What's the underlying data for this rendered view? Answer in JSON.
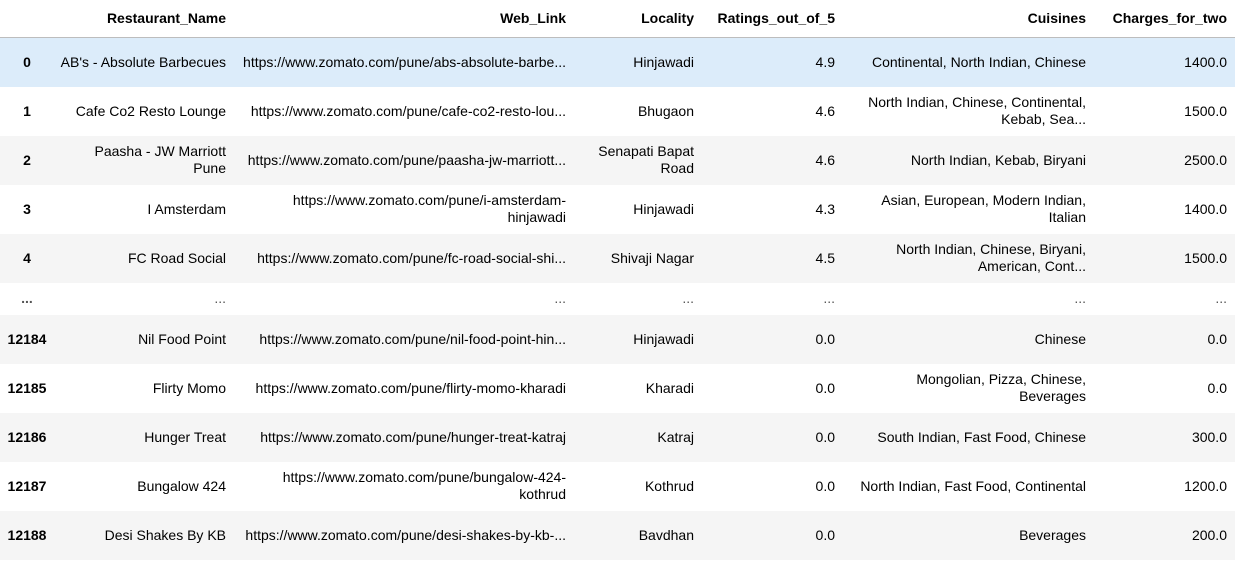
{
  "table": {
    "columns": {
      "index": "",
      "name": "Restaurant_Name",
      "link": "Web_Link",
      "locality": "Locality",
      "ratings": "Ratings_out_of_5",
      "cuisines": "Cuisines",
      "charges": "Charges_for_two"
    },
    "rows": [
      {
        "index": "0",
        "name": "AB's - Absolute Barbecues",
        "link": "https://www.zomato.com/pune/abs-absolute-barbe...",
        "locality": "Hinjawadi",
        "ratings": "4.9",
        "cuisines": "Continental, North Indian, Chinese",
        "charges": "1400.0"
      },
      {
        "index": "1",
        "name": "Cafe Co2 Resto Lounge",
        "link": "https://www.zomato.com/pune/cafe-co2-resto-lou...",
        "locality": "Bhugaon",
        "ratings": "4.6",
        "cuisines": "North Indian, Chinese, Continental, Kebab, Sea...",
        "charges": "1500.0"
      },
      {
        "index": "2",
        "name": "Paasha - JW Marriott Pune",
        "link": "https://www.zomato.com/pune/paasha-jw-marriott...",
        "locality": "Senapati Bapat Road",
        "ratings": "4.6",
        "cuisines": "North Indian, Kebab, Biryani",
        "charges": "2500.0"
      },
      {
        "index": "3",
        "name": "I Amsterdam",
        "link": "https://www.zomato.com/pune/i-amsterdam-hinjawadi",
        "locality": "Hinjawadi",
        "ratings": "4.3",
        "cuisines": "Asian, European, Modern Indian, Italian",
        "charges": "1400.0"
      },
      {
        "index": "4",
        "name": "FC Road Social",
        "link": "https://www.zomato.com/pune/fc-road-social-shi...",
        "locality": "Shivaji Nagar",
        "ratings": "4.5",
        "cuisines": "North Indian, Chinese, Biryani, American, Cont...",
        "charges": "1500.0"
      },
      {
        "index": "...",
        "name": "...",
        "link": "...",
        "locality": "...",
        "ratings": "...",
        "cuisines": "...",
        "charges": "..."
      },
      {
        "index": "12184",
        "name": "Nil Food Point",
        "link": "https://www.zomato.com/pune/nil-food-point-hin...",
        "locality": "Hinjawadi",
        "ratings": "0.0",
        "cuisines": "Chinese",
        "charges": "0.0"
      },
      {
        "index": "12185",
        "name": "Flirty Momo",
        "link": "https://www.zomato.com/pune/flirty-momo-kharadi",
        "locality": "Kharadi",
        "ratings": "0.0",
        "cuisines": "Mongolian, Pizza, Chinese, Beverages",
        "charges": "0.0"
      },
      {
        "index": "12186",
        "name": "Hunger Treat",
        "link": "https://www.zomato.com/pune/hunger-treat-katraj",
        "locality": "Katraj",
        "ratings": "0.0",
        "cuisines": "South Indian, Fast Food, Chinese",
        "charges": "300.0"
      },
      {
        "index": "12187",
        "name": "Bungalow 424",
        "link": "https://www.zomato.com/pune/bungalow-424-kothrud",
        "locality": "Kothrud",
        "ratings": "0.0",
        "cuisines": "North Indian, Fast Food, Continental",
        "charges": "1200.0"
      },
      {
        "index": "12188",
        "name": "Desi Shakes By KB",
        "link": "https://www.zomato.com/pune/desi-shakes-by-kb-...",
        "locality": "Bavdhan",
        "ratings": "0.0",
        "cuisines": "Beverages",
        "charges": "200.0"
      }
    ]
  },
  "colors": {
    "hover_row": "#dcecfa",
    "striped_row": "#f5f5f5",
    "header_border": "#bdbdbd"
  }
}
